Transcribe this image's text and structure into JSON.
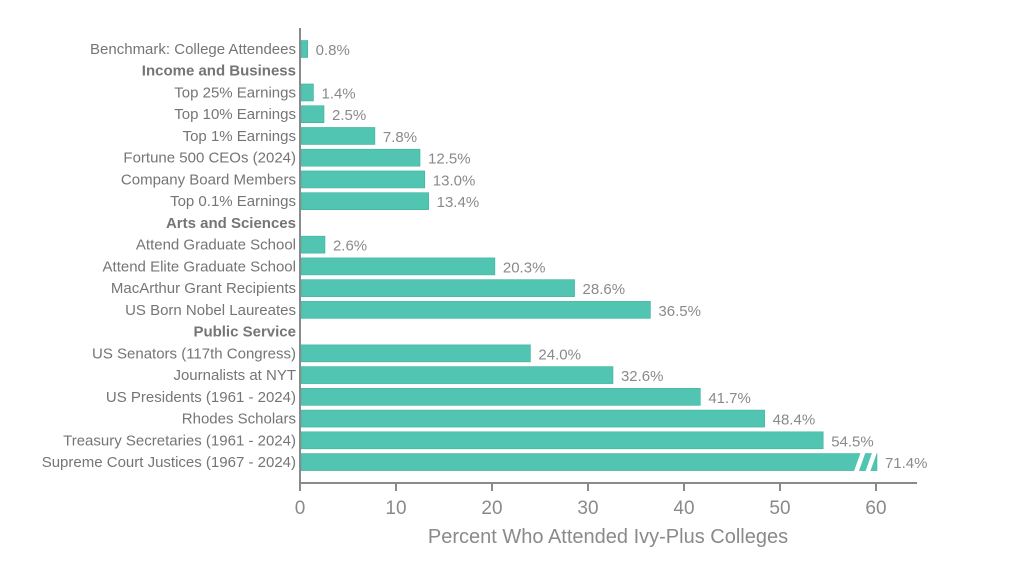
{
  "chart_data": {
    "type": "bar",
    "orientation": "horizontal",
    "xlabel": "Percent Who Attended Ivy-Plus Colleges",
    "ylabel": "",
    "xlim": [
      0,
      64.3
    ],
    "xticks": [
      0,
      10,
      20,
      30,
      40,
      50,
      60
    ],
    "grid": false,
    "bar_color": "#52c4b2",
    "axis_break_on_values_above": 60,
    "rows": [
      {
        "label": "Benchmark: College Attendees",
        "value": 0.8,
        "value_label": "0.8%"
      },
      {
        "label": "Income and Business",
        "group_header": true
      },
      {
        "label": "Top 25% Earnings",
        "value": 1.4,
        "value_label": "1.4%"
      },
      {
        "label": "Top 10% Earnings",
        "value": 2.5,
        "value_label": "2.5%"
      },
      {
        "label": "Top 1% Earnings",
        "value": 7.8,
        "value_label": "7.8%"
      },
      {
        "label": "Fortune 500 CEOs (2024)",
        "value": 12.5,
        "value_label": "12.5%"
      },
      {
        "label": "Company Board Members",
        "value": 13.0,
        "value_label": "13.0%"
      },
      {
        "label": "Top 0.1% Earnings",
        "value": 13.4,
        "value_label": "13.4%"
      },
      {
        "label": "Arts and Sciences",
        "group_header": true
      },
      {
        "label": "Attend Graduate School",
        "value": 2.6,
        "value_label": "2.6%"
      },
      {
        "label": "Attend Elite Graduate School",
        "value": 20.3,
        "value_label": "20.3%"
      },
      {
        "label": "MacArthur Grant Recipients",
        "value": 28.6,
        "value_label": "28.6%"
      },
      {
        "label": "US Born Nobel Laureates",
        "value": 36.5,
        "value_label": "36.5%"
      },
      {
        "label": "Public Service",
        "group_header": true
      },
      {
        "label": "US Senators (117th Congress)",
        "value": 24.0,
        "value_label": "24.0%"
      },
      {
        "label": "Journalists at NYT",
        "value": 32.6,
        "value_label": "32.6%"
      },
      {
        "label": "US Presidents (1961 - 2024)",
        "value": 41.7,
        "value_label": "41.7%"
      },
      {
        "label": "Rhodes Scholars",
        "value": 48.4,
        "value_label": "48.4%"
      },
      {
        "label": "Treasury Secretaries (1961 - 2024)",
        "value": 54.5,
        "value_label": "54.5%"
      },
      {
        "label": "Supreme Court Justices (1967 - 2024)",
        "value": 71.4,
        "value_label": "71.4%"
      }
    ]
  }
}
